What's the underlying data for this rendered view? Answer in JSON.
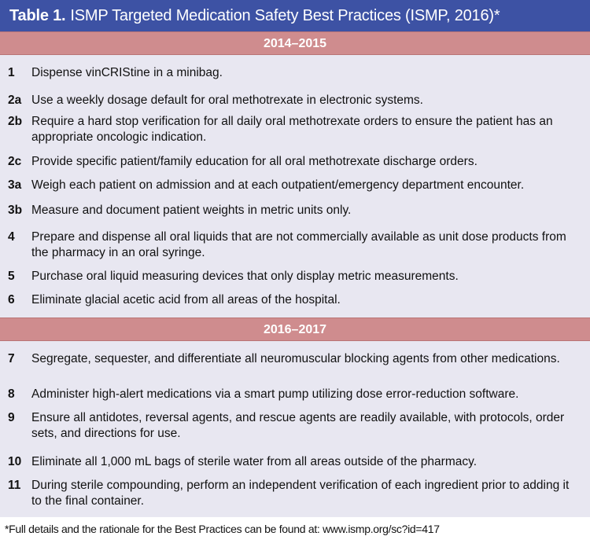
{
  "title": {
    "label": "Table 1.",
    "text": "ISMP Targeted Medication Safety Best Practices (ISMP, 2016)*"
  },
  "sections": [
    {
      "header": "2014–2015",
      "items": [
        {
          "num": "1",
          "text": "Dispense vinCRIStine in a minibag."
        },
        {
          "num": "2a",
          "text": "Use a weekly dosage default for oral methotrexate in electronic systems."
        },
        {
          "num": "2b",
          "text": "Require a hard stop verification for all daily oral methotrexate orders to ensure the patient has an appropriate oncologic indication."
        },
        {
          "num": "2c",
          "text": "Provide specific patient/family education for all oral methotrexate discharge orders."
        },
        {
          "num": "3a",
          "text": "Weigh each patient on admission and at each outpatient/emergency department encounter."
        },
        {
          "num": "3b",
          "text": "Measure and document patient weights in metric units only."
        },
        {
          "num": "4",
          "text": "Prepare and dispense all oral liquids that are not commercially available as unit dose products from the pharmacy in an oral syringe."
        },
        {
          "num": "5",
          "text": "Purchase oral liquid measuring devices that only display metric measurements."
        },
        {
          "num": "6",
          "text": "Eliminate glacial acetic acid from all areas of the hospital."
        }
      ]
    },
    {
      "header": "2016–2017",
      "items": [
        {
          "num": "7",
          "text": "Segregate, sequester, and differentiate all neuromuscular blocking agents from other medications."
        },
        {
          "num": "8",
          "text": "Administer high-alert medications via a smart pump utilizing dose error-reduction software."
        },
        {
          "num": "9",
          "text": "Ensure all antidotes, reversal agents, and rescue agents are readily available, with protocols, order sets, and directions for use."
        },
        {
          "num": "10",
          "text": "Eliminate all 1,000 mL bags of sterile water from all areas outside of the pharmacy."
        },
        {
          "num": "11",
          "text": "During sterile compounding, perform an independent verification of each ingredient prior to adding it to the final container."
        }
      ]
    }
  ],
  "footnote": "*Full details and the rationale for the Best Practices can be found at: www.ismp.org/sc?id=417",
  "colors": {
    "title_bg": "#3d52a4",
    "section_bg": "#cf8c8e",
    "table_bg": "#e8e7f1"
  }
}
